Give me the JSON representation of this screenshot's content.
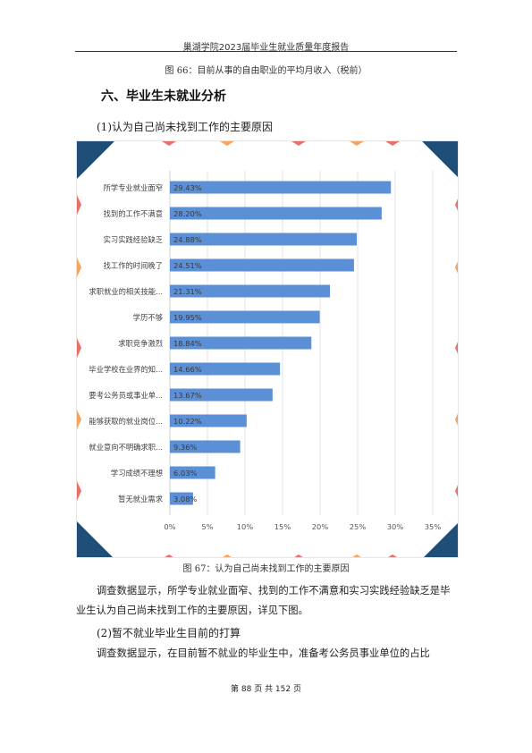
{
  "header": {
    "title": "巢湖学院2023届毕业生就业质量年度报告"
  },
  "top_caption": "图 66：目前从事的自由职业的平均月收入（税前）",
  "section": {
    "title": "六、毕业生未就业分析"
  },
  "subsection1": {
    "title": "(1)认为自己尚未找到工作的主要原因"
  },
  "figure": {
    "caption": "图 67：认为自己尚未找到工作的主要原因"
  },
  "paragraph1": "调查数据显示，所学专业就业面窄、找到的工作不满意和实习实践经验缺乏是毕业生认为自己尚未找到工作的主要原因，详见下图。",
  "subsection2": {
    "title": "(2)暂不就业毕业生目前的打算"
  },
  "paragraph2": "调查数据显示，在目前暂不就业的毕业生中，准备考公务员事业单位的占比",
  "footer": {
    "page_text": "第 88 页 共 152 页"
  },
  "colors": {
    "bar": "#5b8fd6",
    "corner_dark": "#1f4e79",
    "corner_orange": "#f4a460",
    "corner_red": "#e8706a"
  },
  "chart_data": {
    "type": "bar",
    "orientation": "horizontal",
    "categories": [
      "所学专业就业面窄",
      "找到的工作不满意",
      "实习实践经验缺乏",
      "找工作的时间晚了",
      "求职就业的相关技能...",
      "学历不够",
      "求职竞争激烈",
      "毕业学校在业界的知...",
      "要考公务员或事业单...",
      "能够获取的就业岗位...",
      "就业意向不明确求职...",
      "学习成绩不理想",
      "暂无就业需求"
    ],
    "values": [
      29.43,
      28.2,
      24.88,
      24.51,
      21.31,
      19.95,
      18.84,
      14.66,
      13.67,
      10.22,
      9.36,
      6.03,
      3.08
    ],
    "data_labels": [
      "29.43%",
      "28.20%",
      "24.88%",
      "24.51%",
      "21.31%",
      "19.95%",
      "18.84%",
      "14.66%",
      "13.67%",
      "10.22%",
      "9.36%",
      "6.03%",
      "3.08%"
    ],
    "xlim": [
      0,
      35
    ],
    "x_ticks": [
      0,
      5,
      10,
      15,
      20,
      25,
      30,
      35
    ],
    "x_tick_labels": [
      "0%",
      "5%",
      "10%",
      "15%",
      "20%",
      "25%",
      "30%",
      "35%"
    ],
    "grid": true
  }
}
